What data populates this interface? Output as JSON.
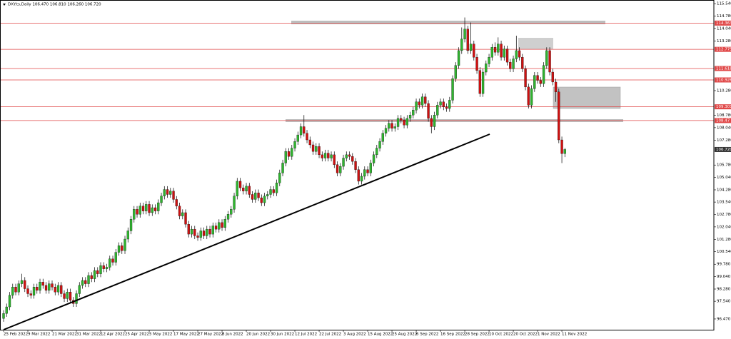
{
  "chart_data": {
    "type": "candlestick",
    "title": "DXY.ts,Daily  106.470 106.810 106.260 106.720",
    "up_color": "#2fb52f",
    "down_color": "#d01010",
    "level_color": "#e04848",
    "xlim": [
      -1.18,
      234.1
    ],
    "ylim": [
      95.82,
      115.76
    ],
    "xticks": [
      {
        "value": 0,
        "label": "25 Feb 2022"
      },
      {
        "value": 8,
        "label": "9 Mar 2022"
      },
      {
        "value": 16,
        "label": "21 Mar 2022"
      },
      {
        "value": 24,
        "label": "31 Mar 2022"
      },
      {
        "value": 32,
        "label": "12 Apr 2022"
      },
      {
        "value": 40,
        "label": "25 Apr 2022"
      },
      {
        "value": 48,
        "label": "5 May 2022"
      },
      {
        "value": 56,
        "label": "17 May 2022"
      },
      {
        "value": 64,
        "label": "27 May 2022"
      },
      {
        "value": 72,
        "label": "8 Jun 2022"
      },
      {
        "value": 80,
        "label": "20 Jun 2022"
      },
      {
        "value": 88,
        "label": "30 Jun 2022"
      },
      {
        "value": 96,
        "label": "12 Jul 2022"
      },
      {
        "value": 104,
        "label": "22 Jul 2022"
      },
      {
        "value": 112,
        "label": "3 Aug 2022"
      },
      {
        "value": 120,
        "label": "15 Aug 2022"
      },
      {
        "value": 128,
        "label": "25 Aug 2022"
      },
      {
        "value": 136,
        "label": "6 Sep 2022"
      },
      {
        "value": 144,
        "label": "16 Sep 2022"
      },
      {
        "value": 152,
        "label": "28 Sep 2022"
      },
      {
        "value": 160,
        "label": "10 Oct 2022"
      },
      {
        "value": 168,
        "label": "20 Oct 2022"
      },
      {
        "value": 176,
        "label": "1 Nov 2022"
      },
      {
        "value": 184,
        "label": "11 Nov 2022"
      }
    ],
    "yticks": [
      {
        "value": 115.54,
        "label": "115.540"
      },
      {
        "value": 114.78,
        "label": "114.780"
      },
      {
        "value": 114.04,
        "label": "114.040"
      },
      {
        "value": 113.28,
        "label": "113.280"
      },
      {
        "value": 110.28,
        "label": "110.280"
      },
      {
        "value": 108.78,
        "label": "108.780"
      },
      {
        "value": 108.04,
        "label": "108.040"
      },
      {
        "value": 107.28,
        "label": "107.280"
      },
      {
        "value": 105.78,
        "label": "105.780"
      },
      {
        "value": 105.04,
        "label": "105.040"
      },
      {
        "value": 104.28,
        "label": "104.280"
      },
      {
        "value": 103.54,
        "label": "103.540"
      },
      {
        "value": 102.78,
        "label": "102.780"
      },
      {
        "value": 102.04,
        "label": "102.040"
      },
      {
        "value": 101.28,
        "label": "101.280"
      },
      {
        "value": 100.54,
        "label": "100.540"
      },
      {
        "value": 99.78,
        "label": "99.780"
      },
      {
        "value": 99.04,
        "label": "99.040"
      },
      {
        "value": 98.28,
        "label": "98.280"
      },
      {
        "value": 97.54,
        "label": "97.540"
      },
      {
        "value": 96.47,
        "label": "96.470"
      }
    ],
    "levels": [
      114.363,
      112.775,
      111.618,
      110.926,
      109.301,
      108.47
    ],
    "last_price": {
      "value": 106.72,
      "label": "106.720"
    },
    "candles": [
      [
        96.5,
        97.0,
        96.3,
        96.8
      ],
      [
        96.8,
        97.4,
        96.6,
        97.2
      ],
      [
        97.2,
        98.1,
        97.0,
        97.9
      ],
      [
        97.9,
        98.6,
        97.7,
        98.4
      ],
      [
        98.4,
        98.6,
        97.9,
        98.1
      ],
      [
        98.1,
        98.8,
        97.9,
        98.6
      ],
      [
        98.6,
        99.2,
        98.4,
        98.8
      ],
      [
        98.8,
        99.0,
        98.1,
        98.3
      ],
      [
        98.3,
        98.5,
        97.8,
        98.0
      ],
      [
        98.0,
        98.2,
        97.7,
        97.9
      ],
      [
        97.9,
        98.6,
        97.7,
        98.4
      ],
      [
        98.4,
        98.6,
        98.0,
        98.2
      ],
      [
        98.2,
        98.9,
        98.0,
        98.7
      ],
      [
        98.7,
        98.9,
        98.3,
        98.5
      ],
      [
        98.5,
        98.7,
        98.0,
        98.2
      ],
      [
        98.2,
        98.8,
        98.0,
        98.6
      ],
      [
        98.6,
        98.8,
        98.2,
        98.4
      ],
      [
        98.4,
        98.6,
        97.9,
        98.1
      ],
      [
        98.1,
        98.7,
        97.9,
        98.5
      ],
      [
        98.5,
        98.7,
        97.8,
        98.0
      ],
      [
        98.0,
        98.2,
        97.5,
        97.7
      ],
      [
        97.7,
        98.3,
        97.5,
        98.1
      ],
      [
        98.1,
        98.3,
        97.4,
        97.6
      ],
      [
        97.6,
        97.8,
        97.2,
        97.4
      ],
      [
        97.4,
        98.2,
        97.2,
        98.0
      ],
      [
        98.0,
        98.7,
        97.8,
        98.5
      ],
      [
        98.5,
        99.0,
        98.3,
        98.8
      ],
      [
        98.8,
        99.0,
        98.4,
        98.6
      ],
      [
        98.6,
        99.3,
        98.4,
        99.1
      ],
      [
        99.1,
        99.3,
        98.7,
        98.9
      ],
      [
        98.9,
        99.6,
        98.7,
        99.4
      ],
      [
        99.4,
        99.6,
        99.0,
        99.2
      ],
      [
        99.2,
        99.9,
        99.0,
        99.7
      ],
      [
        99.7,
        99.9,
        99.3,
        99.5
      ],
      [
        99.5,
        99.8,
        99.3,
        99.6
      ],
      [
        99.6,
        100.3,
        99.4,
        100.1
      ],
      [
        100.1,
        100.3,
        99.7,
        99.9
      ],
      [
        99.9,
        100.7,
        99.7,
        100.5
      ],
      [
        100.5,
        101.1,
        100.3,
        100.9
      ],
      [
        100.9,
        101.1,
        100.4,
        100.6
      ],
      [
        100.6,
        101.5,
        100.4,
        101.3
      ],
      [
        101.3,
        102.0,
        101.1,
        101.8
      ],
      [
        101.8,
        102.7,
        101.6,
        102.5
      ],
      [
        102.5,
        103.3,
        102.3,
        103.1
      ],
      [
        103.1,
        103.3,
        102.6,
        102.8
      ],
      [
        102.8,
        103.5,
        102.6,
        103.3
      ],
      [
        103.3,
        103.5,
        102.8,
        103.0
      ],
      [
        103.0,
        103.6,
        102.8,
        103.4
      ],
      [
        103.4,
        103.6,
        102.7,
        102.9
      ],
      [
        102.9,
        103.4,
        102.7,
        103.2
      ],
      [
        103.2,
        103.4,
        102.8,
        103.0
      ],
      [
        103.0,
        103.7,
        102.8,
        103.5
      ],
      [
        103.5,
        104.1,
        103.3,
        103.9
      ],
      [
        103.9,
        104.5,
        103.7,
        104.3
      ],
      [
        104.3,
        104.5,
        103.8,
        104.0
      ],
      [
        104.0,
        104.4,
        103.8,
        104.2
      ],
      [
        104.2,
        104.4,
        103.5,
        103.7
      ],
      [
        103.7,
        103.9,
        103.1,
        103.3
      ],
      [
        103.3,
        103.5,
        102.5,
        102.7
      ],
      [
        102.7,
        103.1,
        102.5,
        102.9
      ],
      [
        102.9,
        103.1,
        102.0,
        102.2
      ],
      [
        102.2,
        102.4,
        101.4,
        101.6
      ],
      [
        101.6,
        102.1,
        101.4,
        101.9
      ],
      [
        101.9,
        102.1,
        101.3,
        101.5
      ],
      [
        101.5,
        101.7,
        101.2,
        101.4
      ],
      [
        101.4,
        102.0,
        101.2,
        101.8
      ],
      [
        101.8,
        102.0,
        101.3,
        101.5
      ],
      [
        101.5,
        102.1,
        101.3,
        101.9
      ],
      [
        101.9,
        102.1,
        101.4,
        101.6
      ],
      [
        101.6,
        102.3,
        101.4,
        102.1
      ],
      [
        102.1,
        102.3,
        101.7,
        101.9
      ],
      [
        101.9,
        102.5,
        101.7,
        102.3
      ],
      [
        102.3,
        102.5,
        101.8,
        102.0
      ],
      [
        102.0,
        102.7,
        101.8,
        102.5
      ],
      [
        102.5,
        103.0,
        102.3,
        102.8
      ],
      [
        102.8,
        103.3,
        102.6,
        103.1
      ],
      [
        103.1,
        104.1,
        102.9,
        103.9
      ],
      [
        103.9,
        105.0,
        103.7,
        104.8
      ],
      [
        104.8,
        105.0,
        104.2,
        104.4
      ],
      [
        104.4,
        104.6,
        104.0,
        104.2
      ],
      [
        104.2,
        104.7,
        104.0,
        104.5
      ],
      [
        104.5,
        104.7,
        103.8,
        104.0
      ],
      [
        104.0,
        104.2,
        103.5,
        103.7
      ],
      [
        103.7,
        104.3,
        103.5,
        104.1
      ],
      [
        104.1,
        104.3,
        103.6,
        103.8
      ],
      [
        103.8,
        104.0,
        103.3,
        103.5
      ],
      [
        103.5,
        104.1,
        103.3,
        103.9
      ],
      [
        103.9,
        104.2,
        103.7,
        104.0
      ],
      [
        104.0,
        104.5,
        103.8,
        104.3
      ],
      [
        104.3,
        104.5,
        103.9,
        104.1
      ],
      [
        104.1,
        104.9,
        103.9,
        104.7
      ],
      [
        104.7,
        105.5,
        104.5,
        105.3
      ],
      [
        105.3,
        106.1,
        105.1,
        105.9
      ],
      [
        105.9,
        106.8,
        105.7,
        106.6
      ],
      [
        106.6,
        106.8,
        106.1,
        106.3
      ],
      [
        106.3,
        107.0,
        106.1,
        106.8
      ],
      [
        106.8,
        107.4,
        106.6,
        107.2
      ],
      [
        107.2,
        107.8,
        107.0,
        107.6
      ],
      [
        107.6,
        108.3,
        107.4,
        108.1
      ],
      [
        108.1,
        108.8,
        107.5,
        107.7
      ],
      [
        107.7,
        107.9,
        107.1,
        107.3
      ],
      [
        107.3,
        107.5,
        106.8,
        107.0
      ],
      [
        107.0,
        107.2,
        106.4,
        106.6
      ],
      [
        106.6,
        107.1,
        106.4,
        106.9
      ],
      [
        106.9,
        107.1,
        106.2,
        106.4
      ],
      [
        106.4,
        106.6,
        106.0,
        106.2
      ],
      [
        106.2,
        106.7,
        106.0,
        106.5
      ],
      [
        106.5,
        106.7,
        106.0,
        106.2
      ],
      [
        106.2,
        106.6,
        106.0,
        106.4
      ],
      [
        106.4,
        106.6,
        105.6,
        105.8
      ],
      [
        105.8,
        106.0,
        105.1,
        105.3
      ],
      [
        105.3,
        105.9,
        105.1,
        105.7
      ],
      [
        105.7,
        106.4,
        105.5,
        106.2
      ],
      [
        106.2,
        106.6,
        106.0,
        106.4
      ],
      [
        106.4,
        106.6,
        106.1,
        106.3
      ],
      [
        106.3,
        106.5,
        105.8,
        106.0
      ],
      [
        106.0,
        106.2,
        105.3,
        105.5
      ],
      [
        105.5,
        105.7,
        104.6,
        104.8
      ],
      [
        104.8,
        105.3,
        104.6,
        105.1
      ],
      [
        105.1,
        105.7,
        104.9,
        105.5
      ],
      [
        105.5,
        105.7,
        105.1,
        105.3
      ],
      [
        105.3,
        106.1,
        105.1,
        105.9
      ],
      [
        105.9,
        106.6,
        105.7,
        106.4
      ],
      [
        106.4,
        107.0,
        106.2,
        106.8
      ],
      [
        106.8,
        107.4,
        106.6,
        107.2
      ],
      [
        107.2,
        107.9,
        107.0,
        107.7
      ],
      [
        107.7,
        108.2,
        107.5,
        108.0
      ],
      [
        108.0,
        108.5,
        107.8,
        108.3
      ],
      [
        108.3,
        108.5,
        107.8,
        108.0
      ],
      [
        108.0,
        108.3,
        107.8,
        108.1
      ],
      [
        108.1,
        108.8,
        107.9,
        108.6
      ],
      [
        108.6,
        108.8,
        108.3,
        108.5
      ],
      [
        108.5,
        108.7,
        108.0,
        108.2
      ],
      [
        108.2,
        108.8,
        108.0,
        108.6
      ],
      [
        108.6,
        109.0,
        108.4,
        108.8
      ],
      [
        108.8,
        109.3,
        108.6,
        109.1
      ],
      [
        109.1,
        109.8,
        108.9,
        109.6
      ],
      [
        109.6,
        109.8,
        109.2,
        109.4
      ],
      [
        109.4,
        110.1,
        109.2,
        109.9
      ],
      [
        109.9,
        110.1,
        109.3,
        109.5
      ],
      [
        109.5,
        109.7,
        108.4,
        108.6
      ],
      [
        108.6,
        108.8,
        107.7,
        108.1
      ],
      [
        108.1,
        109.0,
        107.9,
        108.8
      ],
      [
        108.8,
        109.6,
        108.6,
        109.4
      ],
      [
        109.4,
        109.8,
        109.2,
        109.6
      ],
      [
        109.6,
        109.8,
        109.1,
        109.3
      ],
      [
        109.3,
        109.5,
        109.0,
        109.2
      ],
      [
        109.2,
        109.9,
        109.0,
        109.7
      ],
      [
        109.7,
        111.2,
        109.5,
        111.0
      ],
      [
        111.0,
        112.0,
        110.8,
        111.8
      ],
      [
        111.8,
        112.9,
        111.6,
        112.7
      ],
      [
        112.7,
        114.1,
        112.5,
        113.4
      ],
      [
        113.4,
        114.7,
        113.2,
        114.0
      ],
      [
        114.0,
        114.2,
        112.5,
        112.7
      ],
      [
        112.7,
        114.4,
        112.5,
        113.1
      ],
      [
        113.1,
        113.3,
        112.1,
        112.3
      ],
      [
        112.3,
        112.5,
        111.3,
        111.5
      ],
      [
        111.5,
        111.7,
        109.9,
        110.1
      ],
      [
        110.1,
        111.6,
        109.9,
        111.4
      ],
      [
        111.4,
        112.1,
        111.2,
        111.9
      ],
      [
        111.9,
        112.5,
        111.7,
        112.3
      ],
      [
        112.3,
        113.1,
        112.1,
        112.9
      ],
      [
        112.9,
        113.2,
        112.4,
        112.6
      ],
      [
        112.6,
        113.5,
        112.4,
        113.1
      ],
      [
        113.1,
        113.3,
        112.1,
        112.3
      ],
      [
        112.3,
        113.0,
        112.1,
        112.8
      ],
      [
        112.8,
        113.0,
        111.8,
        112.0
      ],
      [
        112.0,
        112.2,
        111.4,
        111.6
      ],
      [
        111.6,
        112.4,
        111.4,
        112.2
      ],
      [
        112.2,
        113.6,
        112.0,
        112.7
      ],
      [
        112.7,
        112.9,
        112.1,
        112.3
      ],
      [
        112.3,
        112.5,
        111.4,
        111.6
      ],
      [
        111.6,
        111.8,
        110.3,
        110.5
      ],
      [
        110.5,
        110.7,
        109.2,
        109.4
      ],
      [
        109.4,
        110.6,
        109.2,
        110.4
      ],
      [
        110.4,
        111.4,
        110.2,
        111.2
      ],
      [
        111.2,
        111.4,
        110.7,
        110.9
      ],
      [
        110.9,
        111.1,
        110.5,
        110.7
      ],
      [
        110.7,
        112.0,
        110.5,
        111.8
      ],
      [
        111.8,
        112.9,
        111.6,
        112.7
      ],
      [
        112.7,
        112.9,
        111.2,
        111.4
      ],
      [
        111.4,
        111.6,
        110.6,
        110.8
      ],
      [
        110.8,
        111.0,
        109.6,
        110.2
      ],
      [
        110.2,
        110.4,
        107.1,
        107.3
      ],
      [
        107.3,
        107.5,
        105.9,
        106.47
      ],
      [
        106.47,
        106.81,
        106.26,
        106.72
      ]
    ]
  }
}
